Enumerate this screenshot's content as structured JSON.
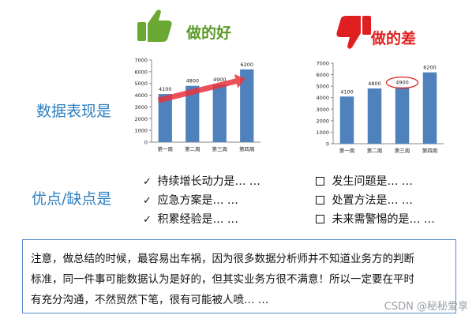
{
  "headings": {
    "good": "做的好",
    "bad": "做的差"
  },
  "row_labels": {
    "data_performance": "数据表现是",
    "pros_cons": "优点/缺点是"
  },
  "icons": {
    "good": "thumbs-up-icon",
    "bad": "thumbs-down-icon",
    "good_color": "#6aa833",
    "bad_color": "#e02020"
  },
  "pros": [
    {
      "mark": "✓",
      "text": "持续增长动力是…  …"
    },
    {
      "mark": "✓",
      "text": "应急方案是…  …"
    },
    {
      "mark": "✓",
      "text": "积累经验是…  …"
    }
  ],
  "cons": [
    {
      "text": "发生问题是…  …"
    },
    {
      "text": "处置方法是…  …"
    },
    {
      "text": "未来需警惕的是…  …"
    }
  ],
  "note_lines": [
    "注意，做总结的时候，最容易出车祸，因为很多数据分析师并不知道业务方的判断",
    "标准，同一件事可能数据认为是好的，但其实业务方很不满意！所以一定要在平时",
    "有充分沟通，不然贸然下笔，很有可能被人喷…  …"
  ],
  "watermark": "CSDN @秘秘爱享",
  "chart_data": [
    {
      "type": "bar",
      "categories": [
        "第一周",
        "第二周",
        "第三周",
        "第四周"
      ],
      "values": [
        4100,
        4800,
        4900,
        6200
      ],
      "ylim": [
        0,
        7000
      ],
      "ytick_step": 1000,
      "bar_color": "#4f81bd",
      "annotation": "red trend arrow across bars (rising)"
    },
    {
      "type": "bar",
      "categories": [
        "第一周",
        "第二周",
        "第三周",
        "第四周"
      ],
      "values": [
        4100,
        4800,
        4900,
        6200
      ],
      "ylim": [
        0,
        7000
      ],
      "ytick_step": 1000,
      "bar_color": "#4f81bd",
      "annotation": "red ellipse circling third label (4900)"
    }
  ]
}
